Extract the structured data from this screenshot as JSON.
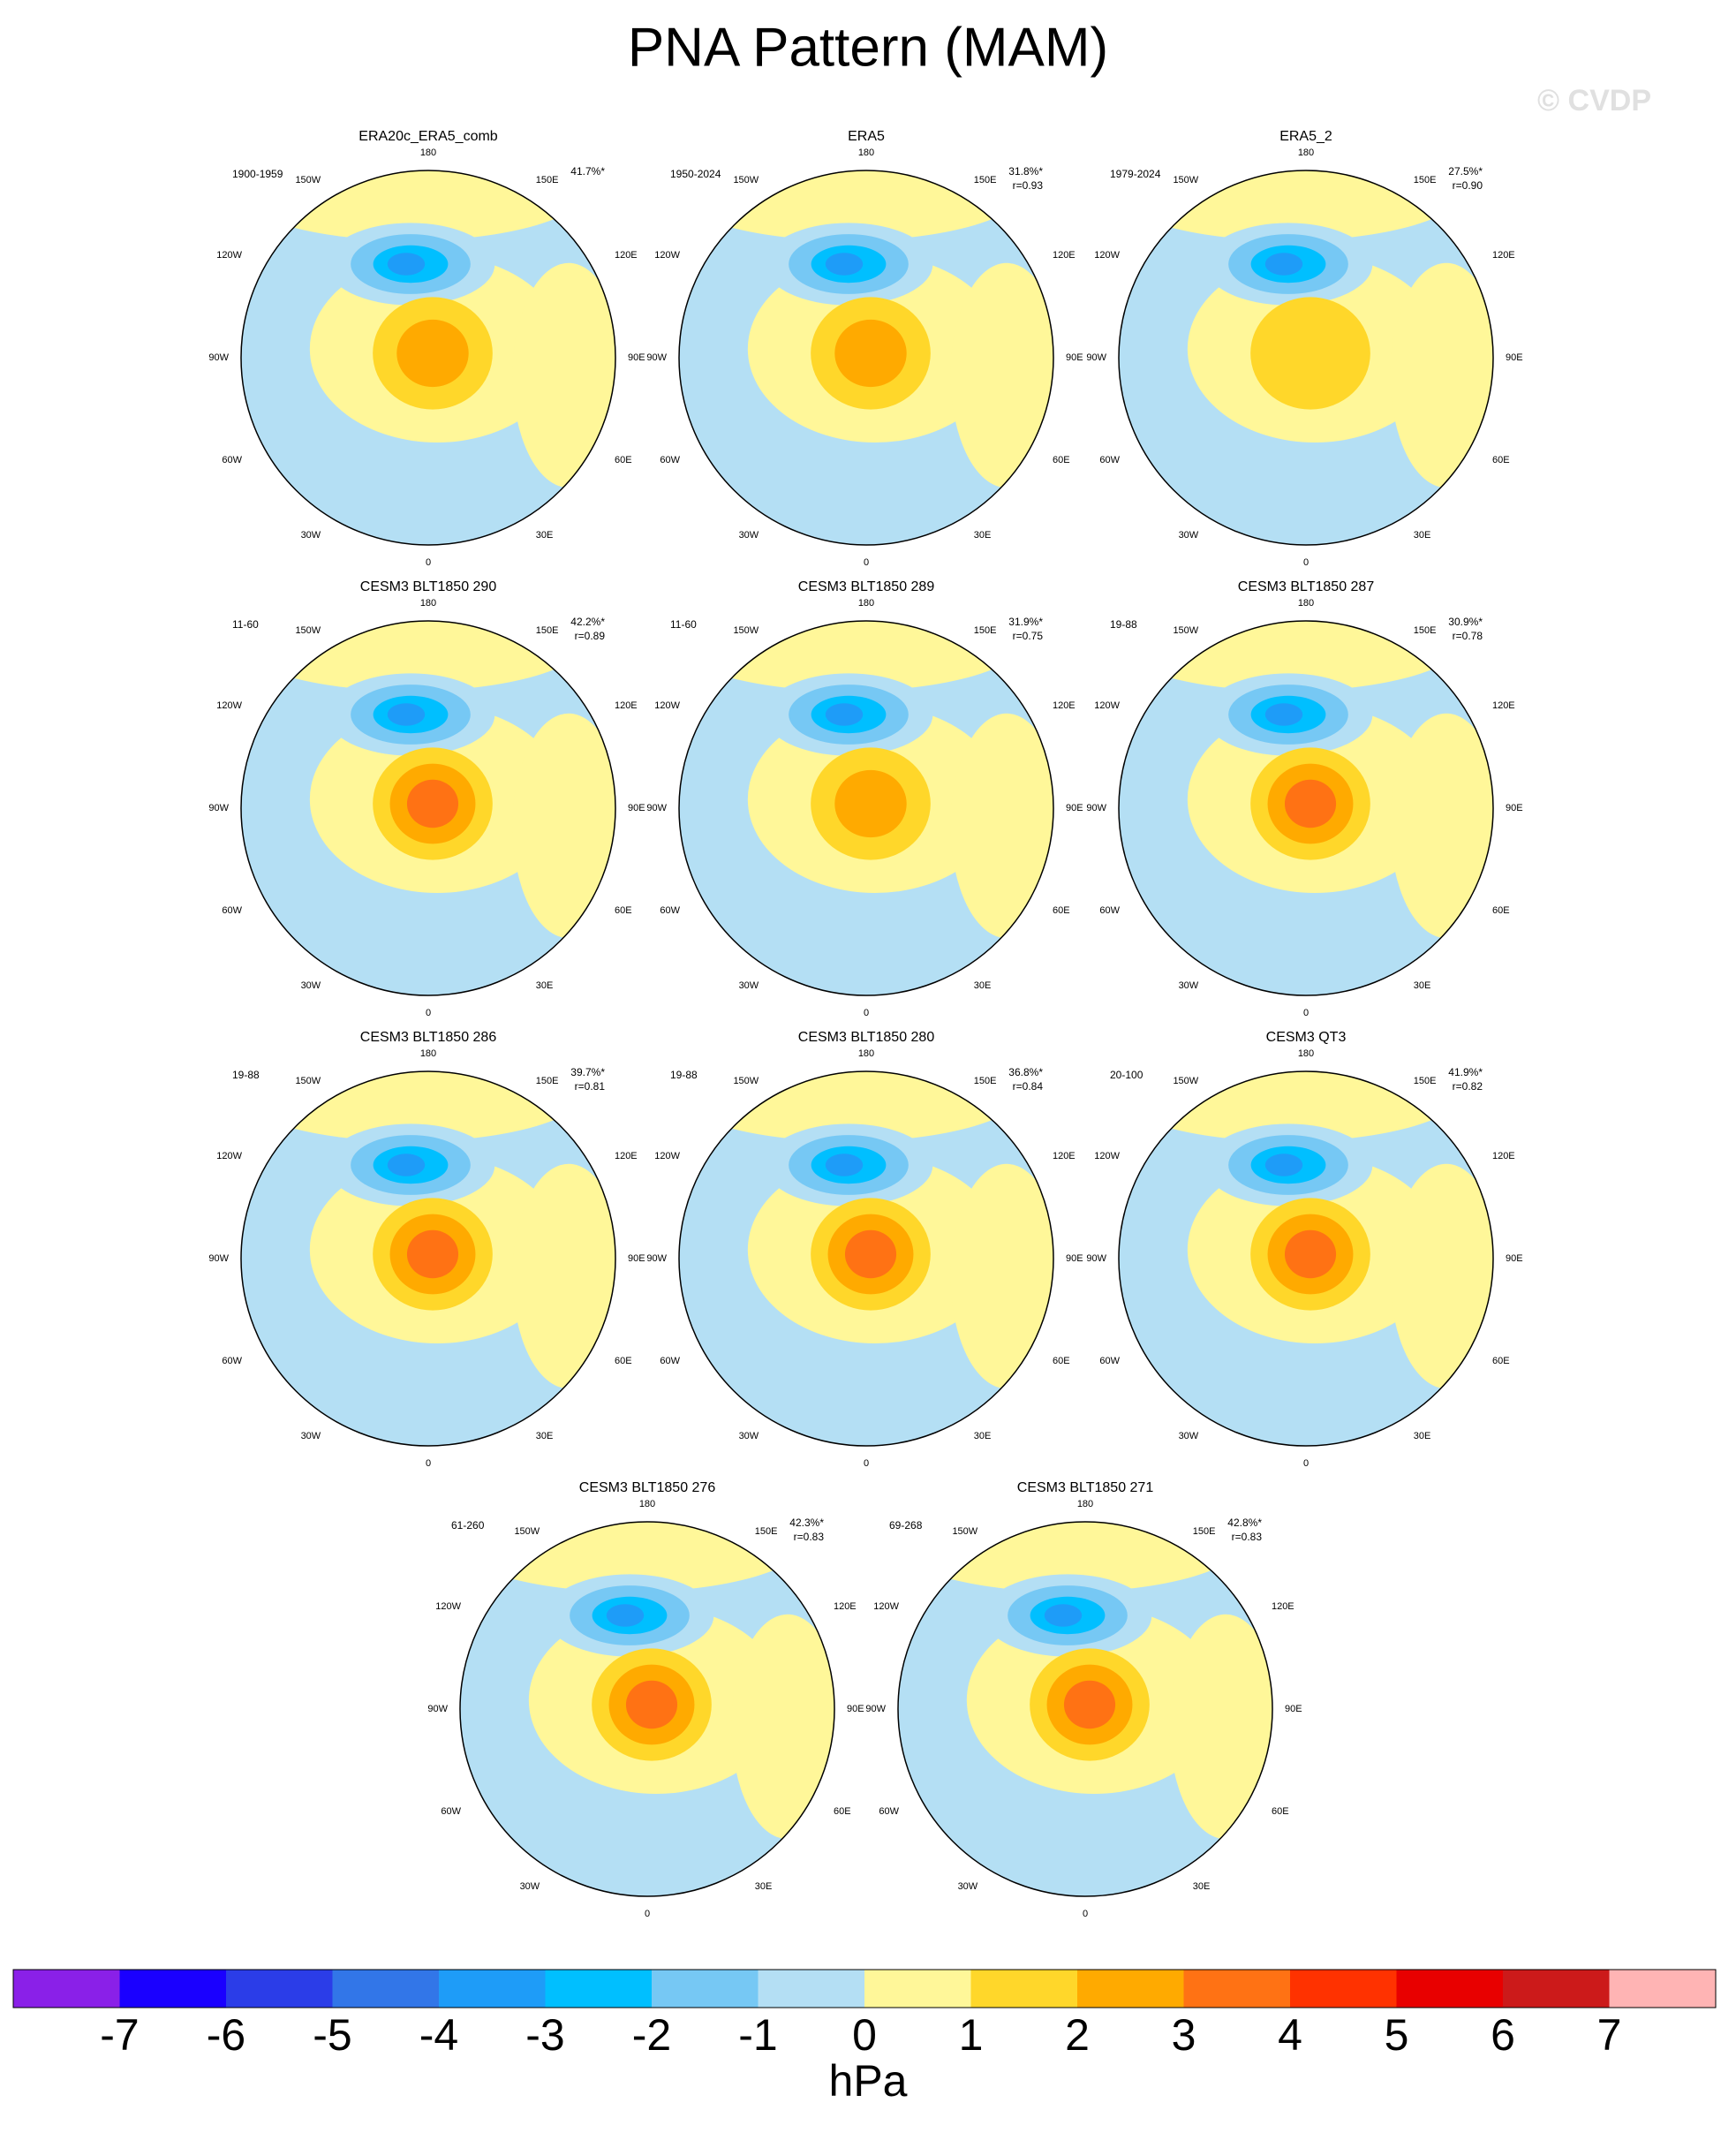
{
  "title": "PNA Pattern (MAM)",
  "copyright": "© CVDP",
  "longitude_labels": [
    "180",
    "150E",
    "120E",
    "90E",
    "60E",
    "30E",
    "0",
    "30W",
    "60W",
    "90W",
    "120W",
    "150W"
  ],
  "panels": [
    {
      "title": "ERA20c_ERA5_comb",
      "period": "1900-1959",
      "pct": "41.7%*"
    },
    {
      "title": "ERA5",
      "period": "1950-2024",
      "pct": "31.8%*",
      "r": "r=0.93"
    },
    {
      "title": "ERA5_2",
      "period": "1979-2024",
      "pct": "27.5%*",
      "r": "r=0.90"
    },
    {
      "title": "CESM3 BLT1850 290",
      "period": "11-60",
      "pct": "42.2%*",
      "r": "r=0.89"
    },
    {
      "title": "CESM3 BLT1850 289",
      "period": "11-60",
      "pct": "31.9%*",
      "r": "r=0.75"
    },
    {
      "title": "CESM3 BLT1850 287",
      "period": "19-88",
      "pct": "30.9%*",
      "r": "r=0.78"
    },
    {
      "title": "CESM3 BLT1850 286",
      "period": "19-88",
      "pct": "39.7%*",
      "r": "r=0.81"
    },
    {
      "title": "CESM3 BLT1850 280",
      "period": "19-88",
      "pct": "36.8%*",
      "r": "r=0.84"
    },
    {
      "title": "CESM3 QT3",
      "period": "20-100",
      "pct": "41.9%*",
      "r": "r=0.82"
    },
    {
      "title": "CESM3 BLT1850 276",
      "period": "61-260",
      "pct": "42.3%*",
      "r": "r=0.83"
    },
    {
      "title": "CESM3 BLT1850 271",
      "period": "69-268",
      "pct": "42.8%*",
      "r": "r=0.83"
    }
  ],
  "colorbar": {
    "ticks": [
      -7,
      -6,
      -5,
      -4,
      -3,
      -2,
      -1,
      0,
      1,
      2,
      3,
      4,
      5,
      6,
      7
    ],
    "colors": [
      "#8a20e8",
      "#1a00ff",
      "#2b3de8",
      "#3276e8",
      "#1e9cf8",
      "#00bfff",
      "#76c8f4",
      "#b4dff4",
      "#fff799",
      "#ffd72a",
      "#ffaa00",
      "#ff7214",
      "#ff3200",
      "#e80000",
      "#cc1a1a",
      "#ffb4b4"
    ],
    "unit": "hPa"
  }
}
